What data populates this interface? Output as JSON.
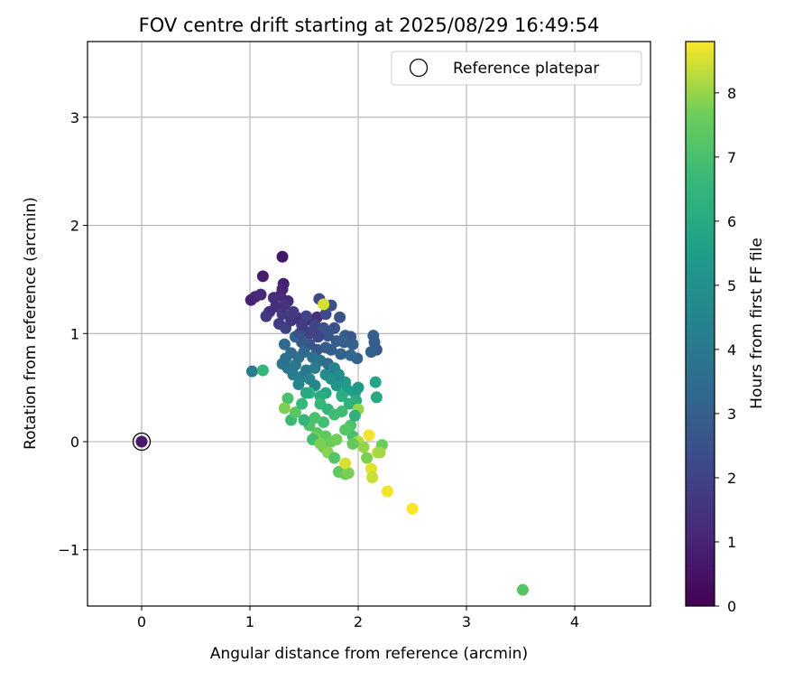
{
  "chart_data": {
    "type": "scatter",
    "title": "FOV centre drift starting at 2025/08/29 16:49:54",
    "xlabel": "Angular distance from reference (arcmin)",
    "ylabel": "Rotation from reference (arcmin)",
    "xlim": [
      -0.5,
      4.7
    ],
    "ylim": [
      -1.52,
      3.7
    ],
    "xticks": [
      0,
      1,
      2,
      3,
      4
    ],
    "xtick_labels": [
      "0",
      "1",
      "2",
      "3",
      "4"
    ],
    "yticks": [
      -1,
      0,
      1,
      2,
      3
    ],
    "ytick_labels": [
      "−1",
      "0",
      "1",
      "2",
      "3"
    ],
    "grid": true,
    "legend": {
      "position": "top-right",
      "entries": [
        "Reference platepar"
      ]
    },
    "colorbar": {
      "label": "Hours from first FF file",
      "colormap": "viridis",
      "range": [
        0,
        8.8
      ],
      "ticks": [
        0,
        1,
        2,
        3,
        4,
        5,
        6,
        7,
        8
      ],
      "tick_labels": [
        "0",
        "1",
        "2",
        "3",
        "4",
        "5",
        "6",
        "7",
        "8"
      ]
    },
    "reference": {
      "x": 0,
      "y": 0,
      "c": 0.7
    },
    "points": [
      {
        "x": 1.3,
        "y": 1.71,
        "c": 0.6
      },
      {
        "x": 1.12,
        "y": 1.53,
        "c": 0.8
      },
      {
        "x": 1.01,
        "y": 1.31,
        "c": 0.9
      },
      {
        "x": 1.05,
        "y": 1.34,
        "c": 1.0
      },
      {
        "x": 1.1,
        "y": 1.36,
        "c": 1.1
      },
      {
        "x": 1.31,
        "y": 1.46,
        "c": 0.9
      },
      {
        "x": 1.3,
        "y": 1.41,
        "c": 1.0
      },
      {
        "x": 1.28,
        "y": 1.35,
        "c": 1.2
      },
      {
        "x": 1.35,
        "y": 1.3,
        "c": 1.1
      },
      {
        "x": 1.22,
        "y": 1.33,
        "c": 1.3
      },
      {
        "x": 1.18,
        "y": 1.2,
        "c": 1.4
      },
      {
        "x": 1.24,
        "y": 1.25,
        "c": 1.3
      },
      {
        "x": 1.15,
        "y": 1.16,
        "c": 1.6
      },
      {
        "x": 1.3,
        "y": 1.18,
        "c": 1.7
      },
      {
        "x": 1.27,
        "y": 1.09,
        "c": 1.8
      },
      {
        "x": 1.33,
        "y": 1.05,
        "c": 1.9
      },
      {
        "x": 1.38,
        "y": 1.12,
        "c": 1.6
      },
      {
        "x": 1.45,
        "y": 1.14,
        "c": 1.5
      },
      {
        "x": 1.57,
        "y": 1.12,
        "c": 1.2
      },
      {
        "x": 1.62,
        "y": 1.15,
        "c": 1.3
      },
      {
        "x": 1.52,
        "y": 1.16,
        "c": 2.0
      },
      {
        "x": 1.6,
        "y": 1.08,
        "c": 2.1
      },
      {
        "x": 1.64,
        "y": 1.32,
        "c": 2.3
      },
      {
        "x": 1.7,
        "y": 1.18,
        "c": 2.2
      },
      {
        "x": 1.75,
        "y": 1.26,
        "c": 2.4
      },
      {
        "x": 1.83,
        "y": 1.15,
        "c": 2.5
      },
      {
        "x": 1.55,
        "y": 1.0,
        "c": 2.2
      },
      {
        "x": 1.5,
        "y": 1.03,
        "c": 1.9
      },
      {
        "x": 1.68,
        "y": 1.05,
        "c": 2.4
      },
      {
        "x": 1.72,
        "y": 0.98,
        "c": 2.6
      },
      {
        "x": 1.78,
        "y": 1.05,
        "c": 2.5
      },
      {
        "x": 1.63,
        "y": 0.97,
        "c": 2.1
      },
      {
        "x": 1.8,
        "y": 0.93,
        "c": 2.8
      },
      {
        "x": 1.88,
        "y": 0.98,
        "c": 2.9
      },
      {
        "x": 1.93,
        "y": 0.97,
        "c": 2.7
      },
      {
        "x": 1.87,
        "y": 0.92,
        "c": 3.0
      },
      {
        "x": 1.95,
        "y": 0.9,
        "c": 3.1
      },
      {
        "x": 2.14,
        "y": 0.98,
        "c": 3.0
      },
      {
        "x": 2.15,
        "y": 0.92,
        "c": 2.9
      },
      {
        "x": 2.17,
        "y": 0.85,
        "c": 2.8
      },
      {
        "x": 2.12,
        "y": 0.83,
        "c": 3.1
      },
      {
        "x": 1.99,
        "y": 0.77,
        "c": 3.2
      },
      {
        "x": 1.93,
        "y": 0.8,
        "c": 3.3
      },
      {
        "x": 1.84,
        "y": 0.81,
        "c": 3.1
      },
      {
        "x": 1.75,
        "y": 0.85,
        "c": 3.0
      },
      {
        "x": 1.7,
        "y": 0.87,
        "c": 2.9
      },
      {
        "x": 1.62,
        "y": 0.85,
        "c": 2.7
      },
      {
        "x": 1.55,
        "y": 0.9,
        "c": 2.6
      },
      {
        "x": 1.48,
        "y": 0.92,
        "c": 2.8
      },
      {
        "x": 1.42,
        "y": 0.97,
        "c": 3.2
      },
      {
        "x": 1.46,
        "y": 1.0,
        "c": 2.5
      },
      {
        "x": 1.32,
        "y": 0.9,
        "c": 3.4
      },
      {
        "x": 1.38,
        "y": 0.82,
        "c": 3.5
      },
      {
        "x": 1.45,
        "y": 0.78,
        "c": 3.6
      },
      {
        "x": 1.5,
        "y": 0.83,
        "c": 3.3
      },
      {
        "x": 1.58,
        "y": 0.78,
        "c": 3.7
      },
      {
        "x": 1.65,
        "y": 0.75,
        "c": 3.8
      },
      {
        "x": 1.3,
        "y": 0.72,
        "c": 3.9
      },
      {
        "x": 1.35,
        "y": 0.68,
        "c": 3.8
      },
      {
        "x": 1.4,
        "y": 0.62,
        "c": 4.1
      },
      {
        "x": 1.48,
        "y": 0.6,
        "c": 4.3
      },
      {
        "x": 1.52,
        "y": 0.66,
        "c": 4.0
      },
      {
        "x": 1.55,
        "y": 0.58,
        "c": 4.4
      },
      {
        "x": 1.6,
        "y": 0.52,
        "c": 4.6
      },
      {
        "x": 1.45,
        "y": 0.53,
        "c": 4.5
      },
      {
        "x": 1.42,
        "y": 0.71,
        "c": 3.9
      },
      {
        "x": 1.33,
        "y": 0.77,
        "c": 3.7
      },
      {
        "x": 1.02,
        "y": 0.65,
        "c": 4.2
      },
      {
        "x": 1.7,
        "y": 0.62,
        "c": 4.8
      },
      {
        "x": 1.75,
        "y": 0.58,
        "c": 5.0
      },
      {
        "x": 1.8,
        "y": 0.52,
        "c": 5.2
      },
      {
        "x": 1.88,
        "y": 0.55,
        "c": 5.3
      },
      {
        "x": 1.9,
        "y": 0.48,
        "c": 5.5
      },
      {
        "x": 1.85,
        "y": 0.43,
        "c": 5.7
      },
      {
        "x": 1.97,
        "y": 0.45,
        "c": 5.6
      },
      {
        "x": 2.0,
        "y": 0.5,
        "c": 5.4
      },
      {
        "x": 2.16,
        "y": 0.55,
        "c": 5.8
      },
      {
        "x": 2.17,
        "y": 0.41,
        "c": 6.0
      },
      {
        "x": 1.98,
        "y": 0.38,
        "c": 6.1
      },
      {
        "x": 1.92,
        "y": 0.35,
        "c": 6.3
      },
      {
        "x": 1.85,
        "y": 0.42,
        "c": 6.2
      },
      {
        "x": 1.7,
        "y": 0.45,
        "c": 5.9
      },
      {
        "x": 1.65,
        "y": 0.42,
        "c": 6.1
      },
      {
        "x": 1.55,
        "y": 0.45,
        "c": 6.4
      },
      {
        "x": 1.65,
        "y": 0.35,
        "c": 6.6
      },
      {
        "x": 1.72,
        "y": 0.3,
        "c": 6.5
      },
      {
        "x": 1.78,
        "y": 0.25,
        "c": 6.8
      },
      {
        "x": 1.68,
        "y": 0.18,
        "c": 6.9
      },
      {
        "x": 1.6,
        "y": 0.22,
        "c": 7.0
      },
      {
        "x": 1.55,
        "y": 0.15,
        "c": 7.1
      },
      {
        "x": 1.35,
        "y": 0.4,
        "c": 7.0
      },
      {
        "x": 1.38,
        "y": 0.2,
        "c": 6.7
      },
      {
        "x": 1.42,
        "y": 0.27,
        "c": 7.3
      },
      {
        "x": 1.5,
        "y": 0.2,
        "c": 6.5
      },
      {
        "x": 1.32,
        "y": 0.31,
        "c": 7.8
      },
      {
        "x": 1.62,
        "y": 0.08,
        "c": 7.3
      },
      {
        "x": 1.7,
        "y": 0.05,
        "c": 7.4
      },
      {
        "x": 1.75,
        "y": 0.0,
        "c": 7.6
      },
      {
        "x": 1.8,
        "y": 0.02,
        "c": 7.7
      },
      {
        "x": 1.68,
        "y": -0.05,
        "c": 7.5
      },
      {
        "x": 1.72,
        "y": -0.1,
        "c": 7.9
      },
      {
        "x": 1.78,
        "y": -0.15,
        "c": 7.2
      },
      {
        "x": 1.82,
        "y": -0.28,
        "c": 7.4
      },
      {
        "x": 1.88,
        "y": -0.3,
        "c": 7.6
      },
      {
        "x": 1.91,
        "y": -0.29,
        "c": 7.8
      },
      {
        "x": 1.88,
        "y": -0.2,
        "c": 8.5
      },
      {
        "x": 1.95,
        "y": 0.05,
        "c": 7.0
      },
      {
        "x": 2.0,
        "y": 0.0,
        "c": 8.2
      },
      {
        "x": 2.05,
        "y": -0.05,
        "c": 8.0
      },
      {
        "x": 2.1,
        "y": 0.06,
        "c": 8.7
      },
      {
        "x": 2.08,
        "y": -0.15,
        "c": 7.8
      },
      {
        "x": 2.12,
        "y": -0.25,
        "c": 8.6
      },
      {
        "x": 2.18,
        "y": -0.1,
        "c": 8.3
      },
      {
        "x": 2.13,
        "y": -0.33,
        "c": 8.4
      },
      {
        "x": 2.22,
        "y": -0.03,
        "c": 7.6
      },
      {
        "x": 2.2,
        "y": -0.1,
        "c": 8.1
      },
      {
        "x": 2.0,
        "y": 0.3,
        "c": 8.0
      },
      {
        "x": 1.93,
        "y": 0.15,
        "c": 7.1
      },
      {
        "x": 1.85,
        "y": 0.28,
        "c": 6.8
      },
      {
        "x": 1.6,
        "y": 0.04,
        "c": 7.7
      },
      {
        "x": 1.58,
        "y": 0.02,
        "c": 6.9
      },
      {
        "x": 1.65,
        "y": -0.02,
        "c": 7.8
      },
      {
        "x": 1.97,
        "y": 0.24,
        "c": 6.3
      },
      {
        "x": 2.27,
        "y": -0.46,
        "c": 8.7
      },
      {
        "x": 2.5,
        "y": -0.62,
        "c": 8.8
      },
      {
        "x": 1.68,
        "y": 1.27,
        "c": 8.5
      },
      {
        "x": 3.52,
        "y": -1.37,
        "c": 7.2
      },
      {
        "x": 1.12,
        "y": 0.66,
        "c": 6.6
      },
      {
        "x": 1.32,
        "y": 1.26,
        "c": 1.5
      },
      {
        "x": 1.4,
        "y": 1.2,
        "c": 1.7
      },
      {
        "x": 1.48,
        "y": 1.08,
        "c": 1.8
      },
      {
        "x": 1.58,
        "y": 1.02,
        "c": 2.0
      },
      {
        "x": 1.72,
        "y": 0.72,
        "c": 3.5
      },
      {
        "x": 1.78,
        "y": 0.68,
        "c": 4.4
      },
      {
        "x": 1.82,
        "y": 0.62,
        "c": 4.7
      },
      {
        "x": 1.6,
        "y": 0.68,
        "c": 4.2
      },
      {
        "x": 1.52,
        "y": 0.45,
        "c": 6.0
      },
      {
        "x": 1.48,
        "y": 0.35,
        "c": 6.6
      },
      {
        "x": 1.88,
        "y": 0.11,
        "c": 7.3
      },
      {
        "x": 1.95,
        "y": -0.02,
        "c": 7.5
      }
    ]
  }
}
